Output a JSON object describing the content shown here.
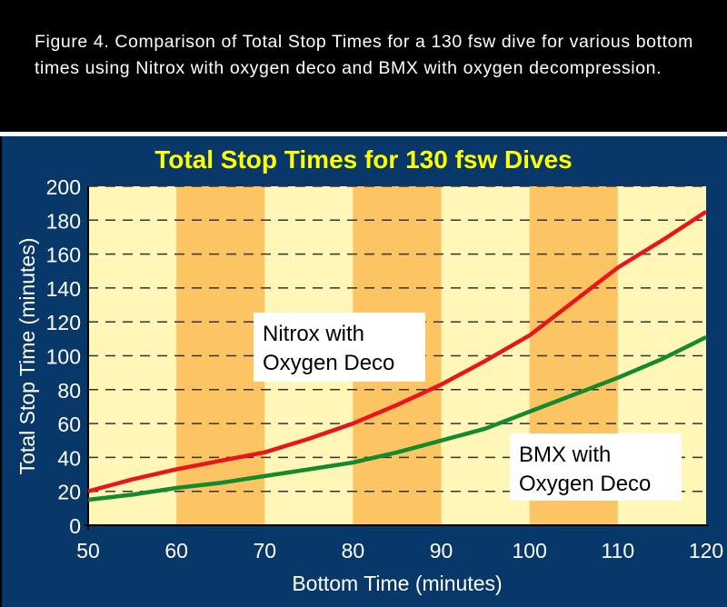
{
  "caption": "Figure 4. Comparison of Total Stop Times for a 130 fsw dive for various bottom times using Nitrox with oxygen deco and BMX with oxygen decompression.",
  "chart_data": {
    "type": "line",
    "title": "Total Stop Times for 130 fsw Dives",
    "xlabel": "Bottom Time (minutes)",
    "ylabel": "Total Stop Time (minutes)",
    "xlim": [
      50,
      120
    ],
    "ylim": [
      0,
      200
    ],
    "xticks": [
      "50",
      "60",
      "70",
      "80",
      "90",
      "100",
      "110",
      "120"
    ],
    "yticks": [
      "0",
      "20",
      "40",
      "60",
      "80",
      "100",
      "120",
      "140",
      "160",
      "180",
      "200"
    ],
    "grid": "horizontal dashed",
    "bands": [
      [
        60,
        70
      ],
      [
        80,
        90
      ],
      [
        100,
        110
      ]
    ],
    "series": [
      {
        "name": "Nitrox with Oxygen Deco",
        "label_lines": [
          "Nitrox with",
          "Oxygen Deco"
        ],
        "color": "#e8161b",
        "x": [
          50,
          55,
          60,
          65,
          70,
          75,
          80,
          85,
          90,
          95,
          100,
          105,
          110,
          115,
          120
        ],
        "y": [
          20,
          27,
          33,
          38,
          43,
          51,
          60,
          71,
          83,
          97,
          112,
          132,
          152,
          168,
          185
        ]
      },
      {
        "name": "BMX with Oxygen Deco",
        "label_lines": [
          "BMX with",
          "Oxygen Deco"
        ],
        "color": "#138a2e",
        "x": [
          50,
          55,
          60,
          65,
          70,
          75,
          80,
          85,
          90,
          95,
          100,
          105,
          110,
          115,
          120
        ],
        "y": [
          15,
          18,
          22,
          25,
          29,
          33,
          37,
          43,
          50,
          57,
          67,
          77,
          87,
          98,
          111
        ]
      }
    ],
    "colors": {
      "band_light": "#fff6b8",
      "band_dark": "#fcc463",
      "title": "#ffff00",
      "background": "#083869"
    }
  }
}
